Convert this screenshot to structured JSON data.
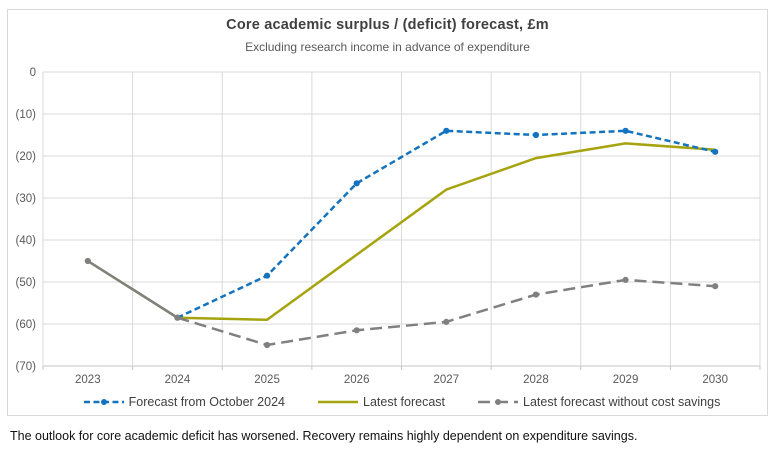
{
  "footer": "The outlook for core academic deficit has worsened. Recovery remains highly dependent on expenditure savings.",
  "colors": {
    "grid": "#d9d9d9",
    "axis": "#c6c6c6",
    "tick_text": "#595959",
    "title_text": "#404040",
    "legend_text": "#404040",
    "border": "#d9d9d9"
  },
  "chart_data": {
    "type": "line",
    "title": "Core academic surplus / (deficit) forecast, £m",
    "subtitle": "Excluding research income in advance of expenditure",
    "categories": [
      "2023",
      "2024",
      "2025",
      "2026",
      "2027",
      "2028",
      "2029",
      "2030"
    ],
    "series": [
      {
        "name": "Forecast from October 2024",
        "color": "#1473be",
        "style": "dashed",
        "marker": true,
        "values": [
          null,
          -58.5,
          -48.5,
          -26.5,
          -14,
          -15,
          -14,
          -19
        ]
      },
      {
        "name": "Latest forecast",
        "color": "#a5a30e",
        "style": "solid",
        "marker": false,
        "values": [
          -45,
          -58.5,
          -59,
          -43.5,
          -28,
          -20.5,
          -17,
          -18.5
        ]
      },
      {
        "name": "Latest forecast without cost savings",
        "color": "#808080",
        "style": "long-dash",
        "marker": true,
        "solid_until": 1,
        "values": [
          -45,
          -58.5,
          -65,
          -61.5,
          -59.5,
          -53,
          -49.5,
          -51
        ]
      }
    ],
    "ylim": [
      -70,
      0
    ],
    "yticks": [
      0,
      -10,
      -20,
      -30,
      -40,
      -50,
      -60,
      -70
    ],
    "ytick_labels": [
      "0",
      "(10)",
      "(20)",
      "(30)",
      "(40)",
      "(50)",
      "(60)",
      "(70)"
    ],
    "xlabel": "",
    "ylabel": "",
    "grid": true,
    "legend_position": "bottom"
  }
}
